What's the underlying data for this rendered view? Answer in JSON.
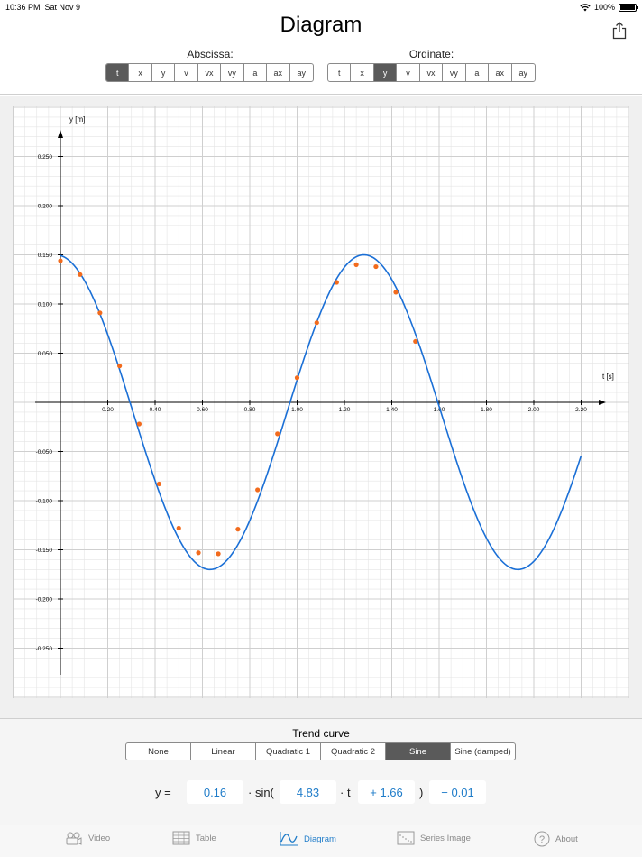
{
  "status_bar": {
    "time": "10:36 PM",
    "date": "Sat Nov 9",
    "battery": "100%",
    "battery_level": 1.0
  },
  "header": {
    "title": "Diagram",
    "share_icon": "share-icon"
  },
  "axes_selector": {
    "abscissa_label": "Abscissa:",
    "ordinate_label": "Ordinate:",
    "abscissa_options": [
      "t",
      "x",
      "y",
      "v",
      "vx",
      "vy",
      "a",
      "ax",
      "ay"
    ],
    "abscissa_selected": "t",
    "ordinate_options": [
      "t",
      "x",
      "y",
      "v",
      "vx",
      "vy",
      "a",
      "ax",
      "ay"
    ],
    "ordinate_selected": "y"
  },
  "trend": {
    "label": "Trend curve",
    "options": [
      "None",
      "Linear",
      "Quadratic 1",
      "Quadratic 2",
      "Sine",
      "Sine (damped)"
    ],
    "selected": "Sine",
    "equation": {
      "lhs": "y =",
      "amplitude": "0.16",
      "sin_label": "· sin(",
      "omega": "4.83",
      "t_label": "· t",
      "phase": "+ 1.66",
      "close": ")",
      "offset": "− 0.01"
    }
  },
  "tabs": [
    {
      "label": "Video",
      "icon": "video-icon",
      "active": false
    },
    {
      "label": "Table",
      "icon": "table-icon",
      "active": false
    },
    {
      "label": "Diagram",
      "icon": "diagram-icon",
      "active": true
    },
    {
      "label": "Series Image",
      "icon": "series-image-icon",
      "active": false
    },
    {
      "label": "About",
      "icon": "help-icon",
      "active": false
    }
  ],
  "colors": {
    "accent": "#1f7cc9",
    "curve": "#1a6fd6",
    "points": "#f26b1d",
    "selected_segment": "#5a5a5a"
  },
  "chart_data": {
    "type": "scatter",
    "xlabel": "t [s]",
    "ylabel": "y [m]",
    "xlim": [
      -0.1,
      2.28
    ],
    "ylim": [
      -0.275,
      0.275
    ],
    "grid": true,
    "x_ticks": [
      "0.20",
      "0.40",
      "0.60",
      "0.80",
      "1.00",
      "1.20",
      "1.40",
      "1.60",
      "1.80",
      "2.00",
      "2.20"
    ],
    "y_ticks": [
      "0.250",
      "0.200",
      "0.150",
      "0.100",
      "0.050",
      "-0.050",
      "-0.100",
      "-0.150",
      "-0.200",
      "-0.250"
    ],
    "series": [
      {
        "type": "scatter",
        "x": [
          0.0,
          0.083,
          0.167,
          0.25,
          0.333,
          0.417,
          0.5,
          0.583,
          0.667,
          0.75,
          0.833,
          0.917,
          1.0,
          1.083,
          1.167,
          1.25,
          1.333,
          1.417,
          1.5
        ],
        "y": [
          0.144,
          0.13,
          0.091,
          0.037,
          -0.022,
          -0.083,
          -0.128,
          -0.153,
          -0.154,
          -0.129,
          -0.089,
          -0.032,
          0.025,
          0.081,
          0.122,
          0.14,
          0.138,
          0.112,
          0.062
        ]
      },
      {
        "type": "line",
        "function": "0.16*sin(4.83*t+1.66)-0.01",
        "x_range": [
          0.0,
          2.2
        ]
      }
    ]
  }
}
